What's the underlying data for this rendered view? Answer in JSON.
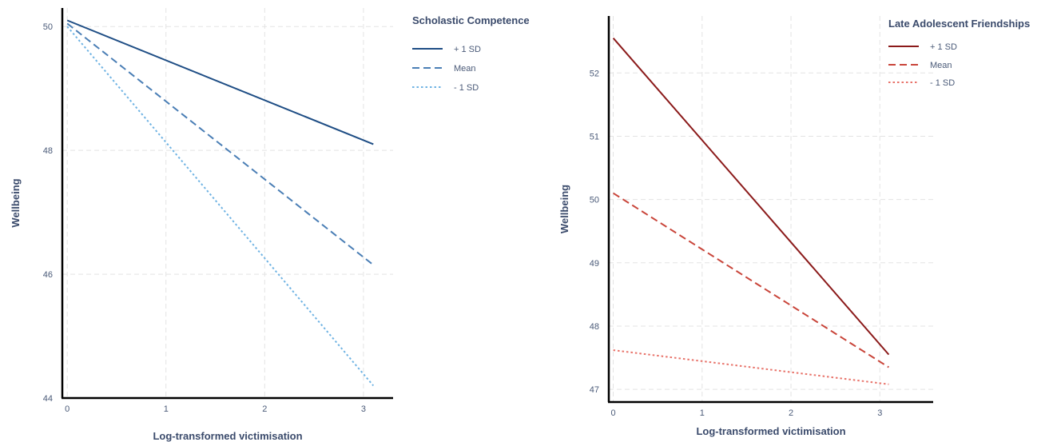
{
  "chart_data": [
    {
      "type": "line",
      "xlabel": "Log-transformed victimisation",
      "ylabel": "Wellbeing",
      "xlim": [
        -0.05,
        3.3
      ],
      "ylim": [
        44,
        50.3
      ],
      "xticks": [
        0,
        1,
        2,
        3
      ],
      "xtick_labels": [
        "0",
        "1",
        "2",
        "3"
      ],
      "yticks": [
        44,
        46,
        48,
        50
      ],
      "ytick_labels": [
        "44",
        "46",
        "48",
        "50"
      ],
      "grid": true,
      "legend": {
        "title": "Scholastic Competence",
        "placement": "right"
      },
      "series": [
        {
          "name": "+ 1 SD",
          "color": "#1f4e85",
          "dash": "solid",
          "x": [
            0,
            3.1
          ],
          "y": [
            50.1,
            48.1
          ]
        },
        {
          "name": "Mean",
          "color": "#4a7eb5",
          "dash": "dashed",
          "x": [
            0,
            3.1
          ],
          "y": [
            50.05,
            46.15
          ]
        },
        {
          "name": "- 1 SD",
          "color": "#6fb3e3",
          "dash": "dotted",
          "x": [
            0,
            3.1
          ],
          "y": [
            50.0,
            44.2
          ]
        }
      ]
    },
    {
      "type": "line",
      "xlabel": "Log-transformed victimisation",
      "ylabel": "Wellbeing",
      "xlim": [
        -0.05,
        3.6
      ],
      "ylim": [
        46.8,
        52.9
      ],
      "xticks": [
        0,
        1,
        2,
        3
      ],
      "xtick_labels": [
        "0",
        "1",
        "2",
        "3"
      ],
      "yticks": [
        47,
        48,
        49,
        50,
        51,
        52
      ],
      "ytick_labels": [
        "47",
        "48",
        "49",
        "50",
        "51",
        "52"
      ],
      "grid": true,
      "legend": {
        "title": "Late Adolescent Friendships",
        "placement": "right"
      },
      "series": [
        {
          "name": "+ 1 SD",
          "color": "#8b1a1a",
          "dash": "solid",
          "x": [
            0,
            3.1
          ],
          "y": [
            52.55,
            47.55
          ]
        },
        {
          "name": "Mean",
          "color": "#c9453a",
          "dash": "dashed",
          "x": [
            0,
            3.1
          ],
          "y": [
            50.1,
            47.35
          ]
        },
        {
          "name": "- 1 SD",
          "color": "#e8736a",
          "dash": "dotted",
          "x": [
            0,
            3.1
          ],
          "y": [
            47.62,
            47.08
          ]
        }
      ]
    }
  ]
}
